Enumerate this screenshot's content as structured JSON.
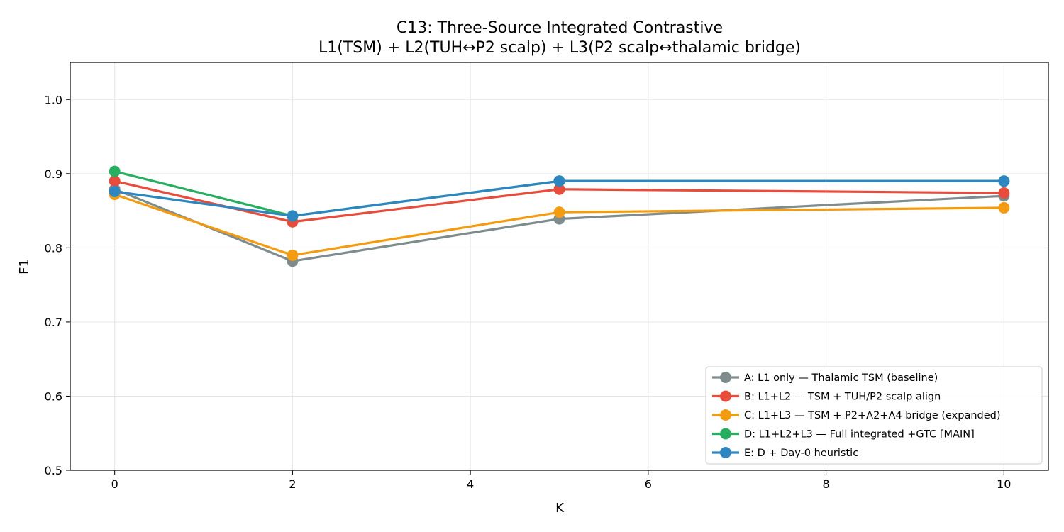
{
  "chart_data": {
    "type": "line",
    "title_lines": [
      "C13: Three-Source Integrated Contrastive",
      "L1(TSM) + L2(TUH↔P2 scalp) + L3(P2 scalp↔thalamic bridge)"
    ],
    "xlabel": "K",
    "ylabel": "F1",
    "xlim": [
      -0.5,
      10.5
    ],
    "ylim": [
      0.5,
      1.05
    ],
    "xticks": [
      0,
      2,
      4,
      6,
      8,
      10
    ],
    "yticks": [
      0.5,
      0.6,
      0.7,
      0.8,
      0.9,
      1.0
    ],
    "xtick_labels": [
      "0",
      "2",
      "4",
      "6",
      "8",
      "10"
    ],
    "ytick_labels": [
      "0.5",
      "0.6",
      "0.7",
      "0.8",
      "0.9",
      "1.0"
    ],
    "grid": true,
    "legend_position": "lower-right",
    "x": [
      0,
      2,
      5,
      10
    ],
    "series": [
      {
        "name": "A: L1 only — Thalamic TSM (baseline)",
        "color": "#7f8c8d",
        "values": [
          0.879,
          0.782,
          0.839,
          0.87
        ]
      },
      {
        "name": "B: L1+L2 — TSM + TUH/P2 scalp align",
        "color": "#e74c3c",
        "values": [
          0.89,
          0.835,
          0.879,
          0.874
        ]
      },
      {
        "name": "C: L1+L3 — TSM + P2+A2+A4 bridge (expanded)",
        "color": "#f39c12",
        "values": [
          0.872,
          0.79,
          0.848,
          0.854
        ]
      },
      {
        "name": "D: L1+L2+L3 — Full integrated +GTC  [MAIN]",
        "color": "#27ae60",
        "values": [
          0.903,
          0.843,
          0.89,
          0.89
        ]
      },
      {
        "name": "E: D + Day-0 heuristic",
        "color": "#2e86c1",
        "values": [
          0.876,
          0.843,
          0.89,
          0.89
        ]
      }
    ]
  }
}
